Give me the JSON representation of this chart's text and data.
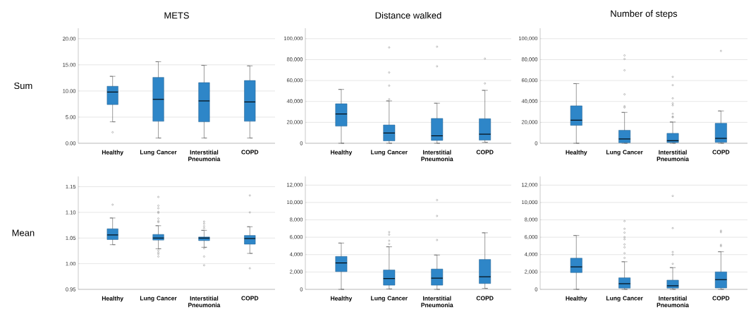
{
  "chart_data": [
    {
      "type": "box",
      "title": "METS",
      "ylabel": "Sum",
      "categories": [
        "Healthy",
        "Lung Cancer",
        "Interstitial Pneumonia",
        "COPD"
      ],
      "color": "#2e86c8",
      "grid": "y",
      "ylim": [
        0,
        22
      ],
      "yticks": [
        {
          "value": 0,
          "label": "0.00"
        },
        {
          "value": 5,
          "label": "5.00"
        },
        {
          "value": 10,
          "label": "10.00"
        },
        {
          "value": 15,
          "label": "15.00"
        },
        {
          "value": 20,
          "label": "20.00"
        }
      ],
      "boxes": [
        {
          "low": 4.1,
          "q1": 7.4,
          "median": 9.8,
          "q3": 10.9,
          "high": 12.8,
          "outliers": [
            2.1
          ]
        },
        {
          "low": 1.0,
          "q1": 4.2,
          "median": 8.4,
          "q3": 12.6,
          "high": 15.6
        },
        {
          "low": 1.0,
          "q1": 4.1,
          "median": 8.1,
          "q3": 11.6,
          "high": 14.9
        },
        {
          "low": 1.0,
          "q1": 4.2,
          "median": 7.9,
          "q3": 12.0,
          "high": 14.8
        }
      ]
    },
    {
      "type": "box",
      "title": "Distance walked",
      "categories": [
        "Healthy",
        "Lung Cancer",
        "Interstitial Pneumonia",
        "COPD"
      ],
      "color": "#2e86c8",
      "grid": "y",
      "ylim": [
        0,
        110000
      ],
      "yticks": [
        0,
        {
          "value": 20000,
          "label": "20,000"
        },
        {
          "value": 40000,
          "label": "40,000"
        },
        {
          "value": 60000,
          "label": "60,000"
        },
        {
          "value": 80000,
          "label": "80,000"
        },
        {
          "value": 100000,
          "label": "100,000"
        }
      ],
      "boxes": [
        {
          "low": 0,
          "q1": 16400,
          "median": 28000,
          "q3": 37800,
          "high": 51500
        },
        {
          "low": 0,
          "q1": 2300,
          "median": 9800,
          "q3": 17500,
          "high": 40500,
          "outliers": [
            42100,
            55100,
            67700,
            91600
          ]
        },
        {
          "low": 0,
          "q1": 2700,
          "median": 7100,
          "q3": 23700,
          "high": 38300,
          "outliers": [
            73600,
            92300
          ]
        },
        {
          "low": 900,
          "q1": 3000,
          "median": 8700,
          "q3": 23500,
          "high": 50600,
          "outliers": [
            57200,
            80900
          ]
        }
      ]
    },
    {
      "type": "box",
      "title": "Number of steps",
      "categories": [
        "Healthy",
        "Lung Cancer",
        "Interstitial Pneumonia",
        "COPD"
      ],
      "color": "#2e86c8",
      "grid": "y",
      "ylim": [
        0,
        110000
      ],
      "yticks": [
        0,
        {
          "value": 20000,
          "label": "20,000"
        },
        {
          "value": 40000,
          "label": "40,000"
        },
        {
          "value": 60000,
          "label": "60,000"
        },
        {
          "value": 80000,
          "label": "80,000"
        },
        {
          "value": 100000,
          "label": "100,000"
        }
      ],
      "boxes": [
        {
          "low": 0,
          "q1": 17100,
          "median": 22100,
          "q3": 35800,
          "high": 57000
        },
        {
          "low": 0,
          "q1": 500,
          "median": 4100,
          "q3": 12400,
          "high": 29500,
          "outliers": [
            34200,
            35400,
            46800,
            69800,
            80600,
            84000
          ]
        },
        {
          "low": 0,
          "q1": 700,
          "median": 2500,
          "q3": 9500,
          "high": 20300,
          "outliers": [
            24800,
            25500,
            28200,
            36300,
            38100,
            43000,
            55600,
            63500
          ]
        },
        {
          "low": 0,
          "q1": 900,
          "median": 4700,
          "q3": 19100,
          "high": 30900,
          "outliers": [
            88300
          ]
        }
      ]
    },
    {
      "type": "box",
      "ylabel": "Mean",
      "categories": [
        "Healthy",
        "Lung Cancer",
        "Interstitial Pneumonia",
        "COPD"
      ],
      "color": "#2e86c8",
      "grid": "y",
      "ylim": [
        0.95,
        1.17
      ],
      "yticks": [
        {
          "value": 0.95,
          "label": "0.95"
        },
        {
          "value": 1.0,
          "label": "1.00"
        },
        {
          "value": 1.05,
          "label": "1.05"
        },
        {
          "value": 1.1,
          "label": "1.10"
        },
        {
          "value": 1.15,
          "label": "1.15"
        }
      ],
      "boxes": [
        {
          "low": 1.037,
          "q1": 1.047,
          "median": 1.056,
          "q3": 1.068,
          "high": 1.089,
          "outliers": [
            1.115
          ]
        },
        {
          "low": 1.029,
          "q1": 1.046,
          "median": 1.05,
          "q3": 1.057,
          "high": 1.074,
          "outliers": [
            1.081,
            1.083,
            1.088,
            1.099,
            1.101,
            1.108,
            1.113,
            1.13,
            1.026,
            1.022,
            1.019,
            1.014
          ]
        },
        {
          "low": 1.032,
          "q1": 1.045,
          "median": 1.05,
          "q3": 1.052,
          "high": 1.065,
          "outliers": [
            1.069,
            1.073,
            1.078,
            1.082,
            1.03,
            1.014,
            0.997
          ]
        },
        {
          "low": 1.02,
          "q1": 1.038,
          "median": 1.049,
          "q3": 1.055,
          "high": 1.072,
          "outliers": [
            1.1,
            1.133,
            0.991
          ]
        }
      ]
    },
    {
      "type": "box",
      "categories": [
        "Healthy",
        "Lung Cancer",
        "Interstitial Pneumonia",
        "COPD"
      ],
      "color": "#2e86c8",
      "grid": "y",
      "ylim": [
        0,
        13000
      ],
      "yticks": [
        0,
        {
          "value": 2000,
          "label": "2,000"
        },
        {
          "value": 4000,
          "label": "4,000"
        },
        {
          "value": 6000,
          "label": "6,000"
        },
        {
          "value": 8000,
          "label": "8,000"
        },
        {
          "value": 10000,
          "label": "10,000"
        },
        {
          "value": 12000,
          "label": "12,000"
        }
      ],
      "boxes": [
        {
          "low": 0,
          "q1": 2040,
          "median": 3040,
          "q3": 3790,
          "high": 5330
        },
        {
          "low": 50,
          "q1": 480,
          "median": 1240,
          "q3": 2230,
          "high": 4900,
          "outliers": [
            5220,
            5600,
            6300,
            6590
          ]
        },
        {
          "low": 0,
          "q1": 480,
          "median": 1290,
          "q3": 2340,
          "high": 3950,
          "outliers": [
            5680,
            8450,
            10280
          ]
        },
        {
          "low": 110,
          "q1": 670,
          "median": 1450,
          "q3": 3440,
          "high": 6510
        }
      ]
    },
    {
      "type": "box",
      "categories": [
        "Healthy",
        "Lung Cancer",
        "Interstitial Pneumonia",
        "COPD"
      ],
      "color": "#2e86c8",
      "grid": "y",
      "ylim": [
        0,
        13000
      ],
      "yticks": [
        0,
        {
          "value": 2000,
          "label": "2,000"
        },
        {
          "value": 4000,
          "label": "4,000"
        },
        {
          "value": 6000,
          "label": "6,000"
        },
        {
          "value": 8000,
          "label": "8,000"
        },
        {
          "value": 10000,
          "label": "10,000"
        },
        {
          "value": 12000,
          "label": "12,000"
        }
      ],
      "boxes": [
        {
          "low": 0,
          "q1": 1930,
          "median": 2590,
          "q3": 3590,
          "high": 6200
        },
        {
          "low": 0,
          "q1": 140,
          "median": 650,
          "q3": 1330,
          "high": 3180,
          "outliers": [
            3620,
            4160,
            4840,
            5170,
            5770,
            6010,
            6530,
            6970,
            7860
          ]
        },
        {
          "low": 0,
          "q1": 140,
          "median": 410,
          "q3": 1060,
          "high": 2500,
          "outliers": [
            2940,
            4000,
            4300,
            7050,
            10750
          ]
        },
        {
          "low": 0,
          "q1": 160,
          "median": 1120,
          "q3": 2010,
          "high": 4330,
          "outliers": [
            5120,
            4980,
            6590,
            6750
          ]
        }
      ]
    }
  ]
}
